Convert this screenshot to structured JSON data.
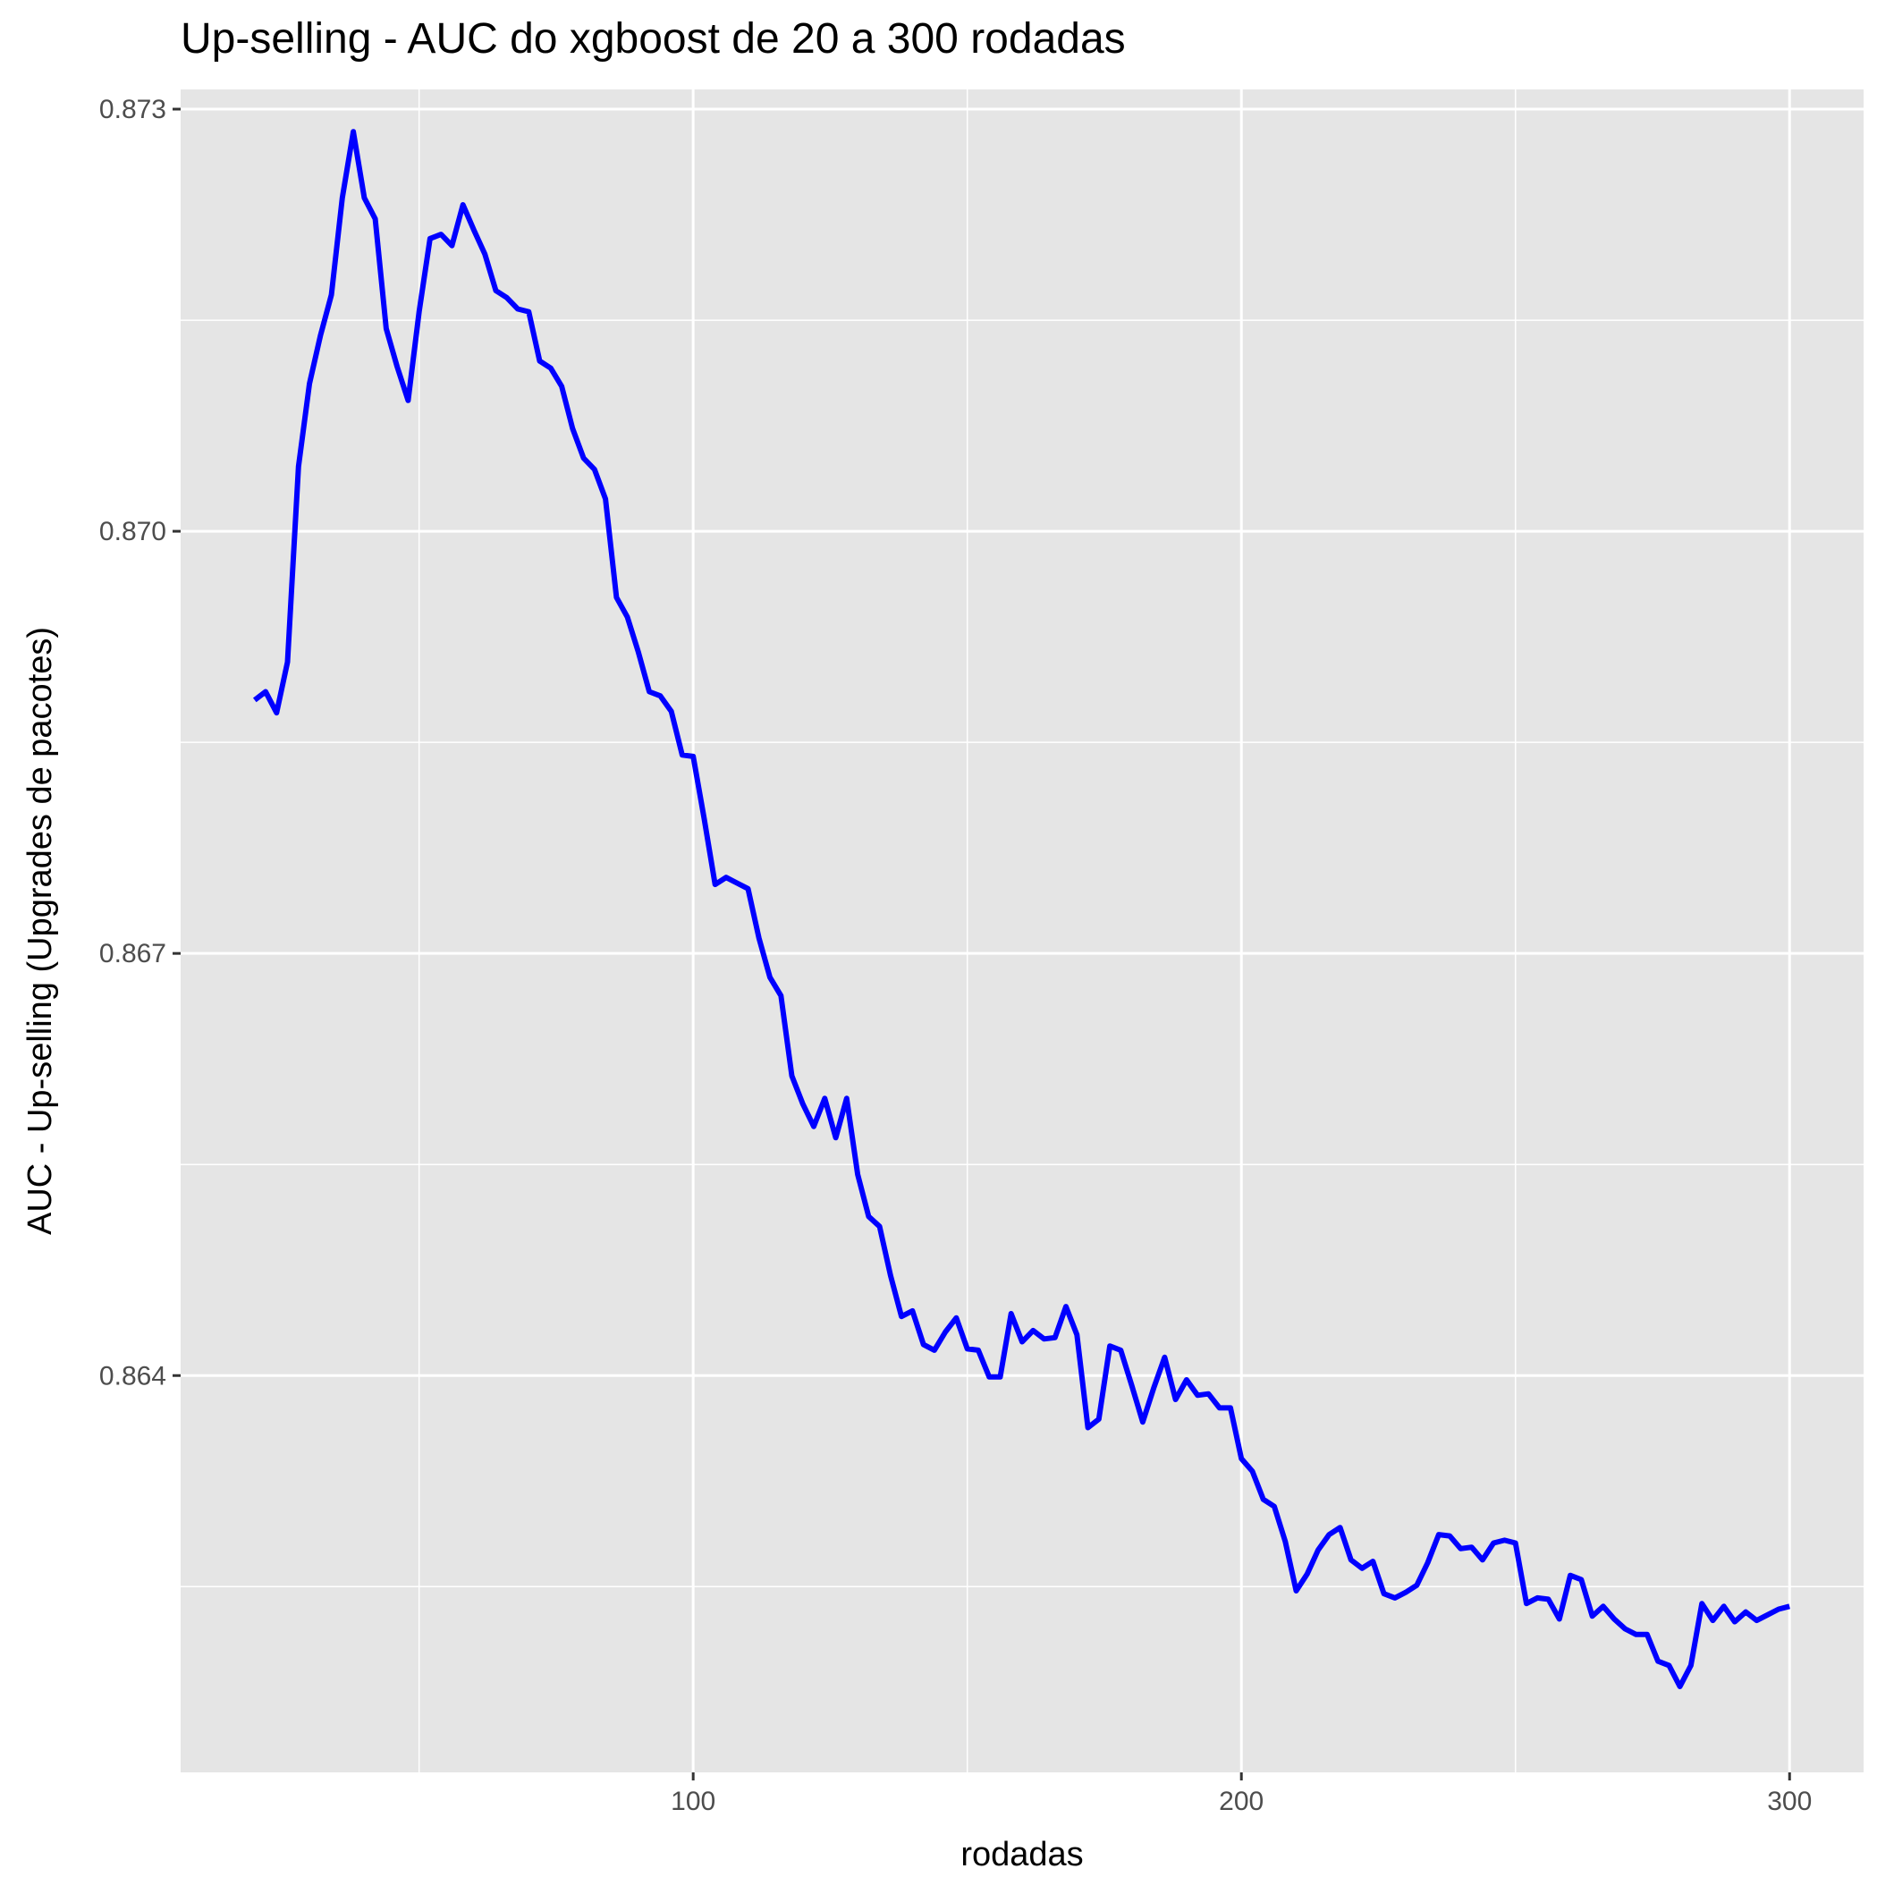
{
  "chart_data": {
    "type": "line",
    "title": "Up-selling - AUC do xgboost de 20 a 300 rodadas",
    "xlabel": "rodadas",
    "ylabel": "AUC - Up-selling (Upgrades de pacotes)",
    "xlim": [
      6.5,
      313.5
    ],
    "ylim": [
      0.86118,
      0.87314
    ],
    "x_ticks": [
      100,
      200,
      300
    ],
    "x_tick_labels": [
      "100",
      "200",
      "300"
    ],
    "x_minor_ticks": [
      50,
      150,
      250
    ],
    "y_ticks": [
      0.864,
      0.867,
      0.87,
      0.873
    ],
    "y_tick_labels": [
      "0.864",
      "0.867",
      "0.870",
      "0.873"
    ],
    "y_minor_ticks": [
      0.8625,
      0.8655,
      0.8685,
      0.8715
    ],
    "grid": true,
    "legend": "none",
    "colors": {
      "panel": "#e5e5e5",
      "grid": "#ffffff",
      "line": "#0000ff",
      "tick_text": "#4d4d4d"
    },
    "series": [
      {
        "color": "#0000ff",
        "x": [
          20,
          22,
          24,
          26,
          28,
          30,
          32,
          34,
          36,
          38,
          40,
          42,
          44,
          46,
          48,
          50,
          52,
          54,
          56,
          58,
          60,
          62,
          64,
          66,
          68,
          70,
          72,
          74,
          76,
          78,
          80,
          82,
          84,
          86,
          88,
          90,
          92,
          94,
          96,
          98,
          100,
          102,
          104,
          106,
          108,
          110,
          112,
          114,
          116,
          118,
          120,
          122,
          124,
          126,
          128,
          130,
          132,
          134,
          136,
          138,
          140,
          142,
          144,
          146,
          148,
          150,
          152,
          154,
          156,
          158,
          160,
          162,
          164,
          166,
          168,
          170,
          172,
          174,
          176,
          178,
          180,
          182,
          184,
          186,
          188,
          190,
          192,
          194,
          196,
          198,
          200,
          202,
          204,
          206,
          208,
          210,
          212,
          214,
          216,
          218,
          220,
          222,
          224,
          226,
          228,
          230,
          232,
          234,
          236,
          238,
          240,
          242,
          244,
          246,
          248,
          250,
          252,
          254,
          256,
          258,
          260,
          262,
          264,
          266,
          268,
          270,
          272,
          274,
          276,
          278,
          280,
          282,
          284,
          286,
          288,
          290,
          292,
          294,
          296,
          298,
          300
        ],
        "y": [
          0.8688,
          0.86886,
          0.86871,
          0.86907,
          0.87046,
          0.87105,
          0.87139,
          0.87168,
          0.87237,
          0.87284,
          0.87237,
          0.87222,
          0.87144,
          0.87117,
          0.87093,
          0.87156,
          0.87208,
          0.87211,
          0.87203,
          0.87232,
          0.87214,
          0.87197,
          0.87171,
          0.87166,
          0.87158,
          0.87156,
          0.87121,
          0.87116,
          0.87103,
          0.87073,
          0.87052,
          0.87044,
          0.87023,
          0.86953,
          0.86939,
          0.86914,
          0.86886,
          0.86883,
          0.86872,
          0.86841,
          0.8684,
          0.86796,
          0.86749,
          0.86754,
          0.8675,
          0.86746,
          0.86711,
          0.86683,
          0.8667,
          0.86613,
          0.86593,
          0.86577,
          0.86597,
          0.86569,
          0.86597,
          0.86543,
          0.86513,
          0.86506,
          0.86471,
          0.86442,
          0.86446,
          0.86422,
          0.86418,
          0.86431,
          0.86441,
          0.86419,
          0.86418,
          0.86399,
          0.86399,
          0.86444,
          0.86424,
          0.86432,
          0.86426,
          0.86427,
          0.86449,
          0.86429,
          0.86363,
          0.86369,
          0.86421,
          0.86418,
          0.86393,
          0.86367,
          0.86391,
          0.86413,
          0.86383,
          0.86397,
          0.86386,
          0.86387,
          0.86377,
          0.86377,
          0.86341,
          0.86332,
          0.86312,
          0.86307,
          0.86282,
          0.86247,
          0.86259,
          0.86276,
          0.86287,
          0.86292,
          0.86269,
          0.86263,
          0.86268,
          0.86245,
          0.86242,
          0.86246,
          0.86251,
          0.86267,
          0.86287,
          0.86286,
          0.86277,
          0.86278,
          0.86269,
          0.86281,
          0.86283,
          0.86281,
          0.86238,
          0.86242,
          0.86241,
          0.86227,
          0.86258,
          0.86255,
          0.86229,
          0.86236,
          0.86227,
          0.8622,
          0.86216,
          0.86216,
          0.86197,
          0.86194,
          0.86179,
          0.86194,
          0.86238,
          0.86226,
          0.86236,
          0.86225,
          0.86232,
          0.86226,
          0.8623,
          0.86234,
          0.86236
        ]
      }
    ]
  }
}
